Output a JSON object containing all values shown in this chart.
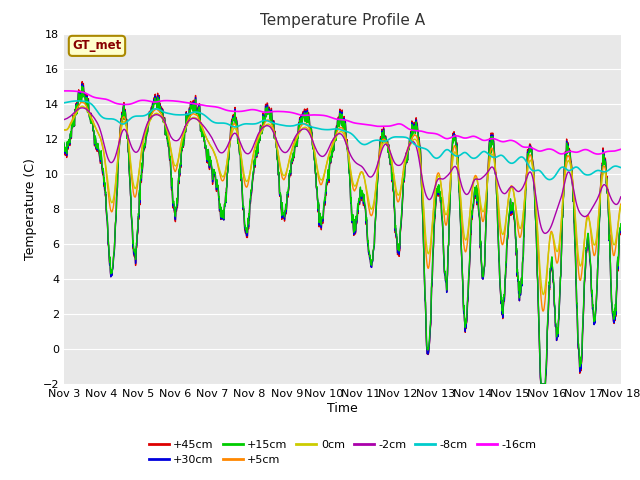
{
  "title": "Temperature Profile A",
  "xlabel": "Time",
  "ylabel": "Temperature (C)",
  "ylim": [
    -2,
    18
  ],
  "n_days": 15,
  "background_color": "#ffffff",
  "plot_bg_color": "#e8e8e8",
  "grid_color": "#ffffff",
  "series": {
    "+45cm": {
      "color": "#dd0000",
      "lw": 1.0
    },
    "+30cm": {
      "color": "#0000dd",
      "lw": 1.0
    },
    "+15cm": {
      "color": "#00cc00",
      "lw": 1.0
    },
    "+5cm": {
      "color": "#ff8800",
      "lw": 1.0
    },
    "0cm": {
      "color": "#cccc00",
      "lw": 1.0
    },
    "-2cm": {
      "color": "#aa00aa",
      "lw": 1.0
    },
    "-8cm": {
      "color": "#00cccc",
      "lw": 1.2
    },
    "-16cm": {
      "color": "#ff00ff",
      "lw": 1.2
    }
  },
  "tick_labels": [
    "Nov 3",
    "Nov 4",
    "Nov 5",
    "Nov 6",
    "Nov 7",
    "Nov 8",
    "Nov 9",
    "Nov 10",
    "Nov 11",
    "Nov 12",
    "Nov 13",
    "Nov 14",
    "Nov 15",
    "Nov 16",
    "Nov 17",
    "Nov 18"
  ],
  "annotation_text": "GT_met",
  "annotation_box_color": "#ffffcc",
  "annotation_border_color": "#aa8800",
  "annotation_text_color": "#880000"
}
